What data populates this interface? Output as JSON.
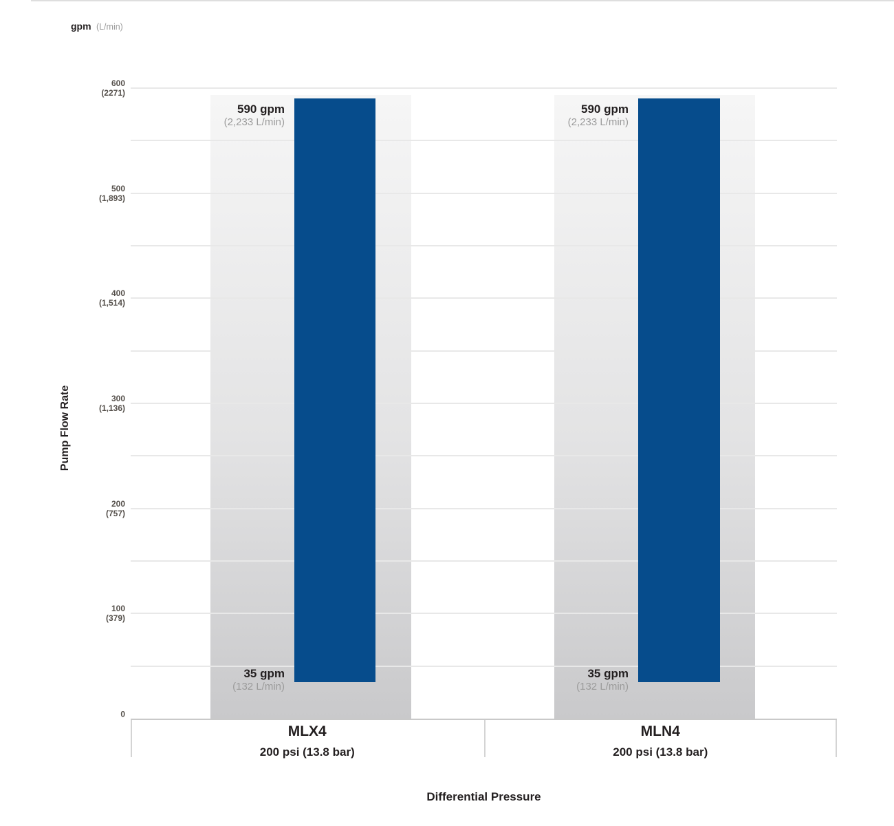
{
  "chart_data": {
    "type": "bar",
    "subtype": "floating-range-bars",
    "title": "",
    "ylabel": "Pump Flow Rate",
    "xlabel": "Differential Pressure",
    "y_unit_primary": "gpm",
    "y_unit_secondary": "(L/min)",
    "ylim": [
      0,
      600
    ],
    "grid_step_gpm": 50,
    "grid": "horizontal-only",
    "legend_position": "none",
    "yticks": [
      {
        "value": 600,
        "gpm": "600",
        "lmin": "(2271)"
      },
      {
        "value": 500,
        "gpm": "500",
        "lmin": "(1,893)"
      },
      {
        "value": 400,
        "gpm": "400",
        "lmin": "(1,514)"
      },
      {
        "value": 300,
        "gpm": "300",
        "lmin": "(1,136)"
      },
      {
        "value": 200,
        "gpm": "200",
        "lmin": "(757)"
      },
      {
        "value": 100,
        "gpm": "100",
        "lmin": "(379)"
      },
      {
        "value": 0,
        "gpm": "0",
        "lmin": ""
      }
    ],
    "categories": [
      {
        "model": "MLX4",
        "condition": "200 psi (13.8 bar)"
      },
      {
        "model": "MLN4",
        "condition": "200 psi (13.8 bar)"
      }
    ],
    "bars": [
      {
        "category": "MLX4",
        "min_gpm": 35,
        "max_gpm": 590,
        "max_label": "590 gpm",
        "max_sublabel": "(2,233 L/min)",
        "min_label": "35 gpm",
        "min_sublabel": "(132 L/min)"
      },
      {
        "category": "MLN4",
        "min_gpm": 35,
        "max_gpm": 590,
        "max_label": "590 gpm",
        "max_sublabel": "(2,233 L/min)",
        "min_label": "35 gpm",
        "min_sublabel": "(132 L/min)"
      }
    ],
    "colors": {
      "bar": "#064c8c",
      "column_top": "#f6f6f6",
      "column_bottom": "#c9c9cb",
      "gridline": "#e8e8e8",
      "axis_line": "#c9c9c9",
      "text_dark": "#231f20",
      "text_gray": "#9b9b9b",
      "tick_text": "#55504b"
    }
  }
}
